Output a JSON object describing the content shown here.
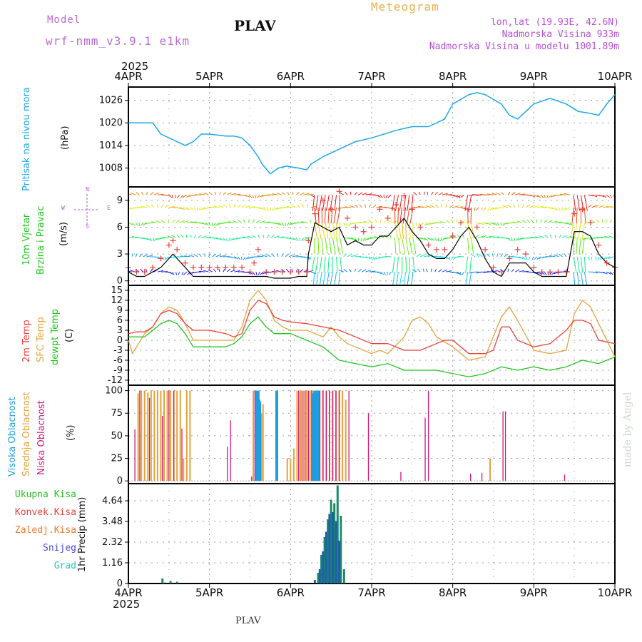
{
  "header": {
    "model_label": "Model",
    "model_name": "wrf-nmm_v3.9.1 e1km",
    "station": "PLAV",
    "title": "Meteogram",
    "lonlat": "lon,lat (19.93E, 42.6N)",
    "elevation": "Nadmorska Visina 933m",
    "model_elevation": "Nadmorska Visina u modelu 1001.89m",
    "year": "2025",
    "footer_station": "PLAV",
    "credit": "made by Angel"
  },
  "colors": {
    "pressure": "#1ea7e6",
    "t2m": "#e8413c",
    "sfc": "#e2a43a",
    "dew": "#21c41d",
    "wind_mean": "#000000",
    "gust": "#e8413c",
    "high_cloud": "#1e9ee0",
    "mid_cloud": "#e6a23a",
    "low_cloud": "#d1187f",
    "total_precip": "#21c41d",
    "conv_precip": "#e8413c",
    "frz_precip": "#f07a2c",
    "snow": "#4a4ad6",
    "hail": "#2cc7c0",
    "bar_dark": "#1f5fa8",
    "bar_green": "#1a8a6a"
  },
  "chart_data": [
    {
      "type": "line",
      "ylabel_main": "Pritisak na nivou mora",
      "ylabel_unit": "(hPa)",
      "ylim": [
        1003,
        1029.5
      ],
      "yticks": [
        "1008",
        "1014",
        "1020",
        "1026"
      ],
      "xlim_days": [
        4,
        10
      ],
      "xticks": [
        "4APR",
        "5APR",
        "6APR",
        "7APR",
        "8APR",
        "9APR",
        "10APR"
      ],
      "series": [
        {
          "x": [
            4.0,
            4.2,
            4.3,
            4.4,
            4.6,
            4.7,
            4.8,
            4.9,
            5.0,
            5.2,
            5.3,
            5.4,
            5.5,
            5.6,
            5.65,
            5.75,
            5.85,
            5.95,
            6.1,
            6.2,
            6.25,
            6.4,
            6.6,
            6.8,
            7.0,
            7.3,
            7.5,
            7.7,
            7.9,
            8.0,
            8.2,
            8.3,
            8.4,
            8.6,
            8.7,
            8.8,
            9.0,
            9.2,
            9.4,
            9.55,
            9.7,
            9.8,
            9.9,
            10.0
          ],
          "y": [
            1020,
            1020,
            1020,
            1017,
            1015,
            1014,
            1015,
            1017,
            1017,
            1016.5,
            1016.5,
            1016,
            1014,
            1011,
            1009,
            1006.5,
            1008,
            1008.5,
            1008,
            1007.5,
            1009,
            1011,
            1013,
            1015,
            1016,
            1018,
            1019,
            1019,
            1021,
            1025,
            1027.5,
            1028,
            1027.5,
            1025,
            1022,
            1021,
            1025,
            1026.5,
            1025,
            1023,
            1022.5,
            1022,
            1025,
            1027.5
          ]
        }
      ]
    },
    {
      "type": "line",
      "ylabel_main": "10m Vjetar",
      "ylabel_sub": "Brzina i Pravac",
      "ylabel_unit": "(m/s)",
      "compass": {
        "n": "N",
        "s": "S",
        "w": "W",
        "e": "E"
      },
      "ylim": [
        -0.5,
        10.5
      ],
      "yticks": [
        "0",
        "3",
        "6",
        "9"
      ],
      "series": [
        {
          "name": "mean wind",
          "x": [
            4.0,
            4.1,
            4.2,
            4.3,
            4.4,
            4.5,
            4.55,
            4.6,
            4.7,
            4.8,
            4.9,
            5.0,
            5.1,
            5.2,
            5.3,
            5.4,
            5.5,
            5.55,
            5.6,
            5.7,
            5.8,
            5.9,
            6.0,
            6.1,
            6.2,
            6.22,
            6.3,
            6.4,
            6.5,
            6.6,
            6.7,
            6.8,
            6.9,
            7.0,
            7.1,
            7.2,
            7.3,
            7.4,
            7.5,
            7.6,
            7.7,
            7.8,
            7.9,
            8.0,
            8.1,
            8.2,
            8.3,
            8.4,
            8.5,
            8.6,
            8.7,
            8.8,
            8.9,
            9.0,
            9.1,
            9.2,
            9.3,
            9.4,
            9.5,
            9.6,
            9.7,
            9.8,
            9.9,
            10.0
          ],
          "y": [
            1,
            0.5,
            0.5,
            1,
            1.5,
            2.5,
            3,
            2.5,
            1.5,
            0.5,
            0.5,
            0.5,
            0.5,
            0.5,
            0.5,
            0.5,
            0.5,
            0.5,
            0.5,
            0.5,
            0.3,
            0.3,
            0.3,
            0.5,
            0.5,
            3,
            6.5,
            6,
            5.5,
            6,
            4,
            4.5,
            4,
            4,
            5,
            5,
            6,
            7,
            5.5,
            4.5,
            3,
            2.5,
            2.5,
            3.5,
            5,
            6,
            4.5,
            2.5,
            1,
            0.5,
            2,
            2,
            2,
            1,
            0.5,
            0.5,
            0.5,
            0.5,
            5.5,
            5.5,
            5,
            3,
            2,
            1.5
          ]
        },
        {
          "name": "gust",
          "x": [
            4.0,
            4.1,
            4.2,
            4.3,
            4.4,
            4.5,
            4.55,
            4.6,
            4.7,
            4.8,
            4.9,
            5.0,
            5.1,
            5.2,
            5.3,
            5.4,
            5.5,
            5.55,
            5.6,
            5.7,
            5.8,
            5.9,
            6.0,
            6.1,
            6.2,
            6.22,
            6.3,
            6.4,
            6.5,
            6.6,
            6.7,
            6.8,
            6.9,
            7.0,
            7.1,
            7.2,
            7.3,
            7.4,
            7.5,
            7.6,
            7.7,
            7.8,
            7.9,
            8.0,
            8.1,
            8.2,
            8.3,
            8.4,
            8.5,
            8.6,
            8.7,
            8.8,
            8.9,
            9.0,
            9.1,
            9.2,
            9.3,
            9.4,
            9.5,
            9.6,
            9.7,
            9.8,
            9.9,
            10.0
          ],
          "y": [
            1.5,
            1,
            1,
            1.5,
            2.5,
            4,
            4.5,
            3.5,
            2,
            1.5,
            1.5,
            1.5,
            1.5,
            1.5,
            1.5,
            1.5,
            1,
            2,
            3.5,
            1,
            1,
            1,
            1,
            1,
            1,
            4.5,
            7.5,
            9,
            8,
            10,
            7,
            6,
            5.5,
            6,
            8,
            7,
            8.5,
            9.5,
            8,
            6,
            4,
            3.5,
            3.5,
            5,
            6.5,
            8,
            6,
            3.5,
            1.5,
            1,
            2.5,
            3.5,
            3,
            1.5,
            1,
            1,
            1,
            1,
            7.5,
            8,
            6.5,
            4,
            2,
            1.5
          ]
        }
      ]
    },
    {
      "type": "line",
      "ylabel_main": "2m Temp",
      "ylabel_sfc": "SFC Temp",
      "ylabel_dew": "dewpt Temp",
      "ylabel_unit": "(C)",
      "ylim": [
        -13.5,
        16.5
      ],
      "yticks": [
        "15",
        "12",
        "9",
        "6",
        "3",
        "0",
        "-3",
        "-6",
        "-9",
        "-12"
      ],
      "series": [
        {
          "name": "2m Temp",
          "x": [
            4.0,
            4.1,
            4.2,
            4.3,
            4.4,
            4.5,
            4.6,
            4.7,
            4.8,
            5.0,
            5.2,
            5.3,
            5.4,
            5.5,
            5.6,
            5.7,
            5.8,
            5.9,
            6.0,
            6.2,
            6.4,
            6.6,
            6.8,
            7.0,
            7.2,
            7.4,
            7.6,
            7.8,
            7.9,
            8.0,
            8.2,
            8.4,
            8.5,
            8.6,
            8.7,
            8.8,
            9.0,
            9.2,
            9.4,
            9.5,
            9.6,
            9.7,
            9.8,
            10.0
          ],
          "y": [
            2,
            2.5,
            2.5,
            4,
            8,
            9,
            8,
            5,
            3,
            3,
            2,
            1,
            2,
            9,
            12,
            11,
            7,
            6,
            5.5,
            5,
            4,
            3,
            1,
            -1,
            -1,
            -3,
            -3,
            -1,
            0,
            0,
            -4,
            -4,
            -3,
            4,
            4,
            0,
            -2,
            -1,
            3,
            6,
            6,
            5,
            0,
            -1
          ]
        },
        {
          "name": "SFC Temp",
          "x": [
            4.0,
            4.05,
            4.1,
            4.2,
            4.3,
            4.4,
            4.5,
            4.6,
            4.7,
            4.8,
            5.0,
            5.2,
            5.3,
            5.4,
            5.5,
            5.6,
            5.7,
            5.8,
            5.9,
            6.0,
            6.2,
            6.4,
            6.5,
            6.6,
            6.7,
            6.8,
            7.0,
            7.1,
            7.2,
            7.4,
            7.5,
            7.6,
            7.7,
            7.8,
            8.0,
            8.2,
            8.4,
            8.5,
            8.6,
            8.7,
            8.8,
            9.0,
            9.2,
            9.4,
            9.5,
            9.6,
            9.7,
            10.0
          ],
          "y": [
            0,
            -4,
            -2,
            2,
            4,
            8,
            10,
            9,
            5,
            0,
            0,
            0,
            0,
            4,
            12,
            15,
            12,
            6,
            4,
            3,
            3,
            1,
            4,
            1,
            -1,
            -2,
            -4,
            -3,
            -4,
            1,
            6,
            7,
            5,
            1,
            -2,
            -6,
            -5,
            1,
            7,
            10,
            6,
            -3,
            -4,
            -3,
            8,
            12,
            10,
            -5
          ]
        },
        {
          "name": "dewpt Temp",
          "x": [
            4.0,
            4.2,
            4.3,
            4.4,
            4.5,
            4.6,
            4.7,
            4.8,
            5.0,
            5.1,
            5.2,
            5.3,
            5.4,
            5.5,
            5.6,
            5.7,
            5.8,
            6.0,
            6.2,
            6.4,
            6.6,
            6.8,
            7.0,
            7.2,
            7.4,
            7.6,
            7.8,
            8.0,
            8.2,
            8.4,
            8.6,
            8.8,
            9.0,
            9.2,
            9.4,
            9.6,
            9.8,
            10.0
          ],
          "y": [
            1,
            1,
            3,
            5,
            6,
            5,
            2,
            -2,
            -2,
            -2,
            -2,
            -1,
            1,
            5,
            7,
            4,
            2,
            2,
            0,
            -2,
            -6,
            -7,
            -8,
            -7,
            -9,
            -9,
            -9,
            -10,
            -11,
            -10,
            -8,
            -9,
            -8,
            -9,
            -8,
            -6,
            -7,
            -5
          ]
        }
      ]
    },
    {
      "type": "bar",
      "ylabel_high": "Visoka Oblacnost",
      "ylabel_mid": "Srednja Oblacnost",
      "ylabel_low": "Niska Oblacnost",
      "ylabel_unit": "(%)",
      "ylim": [
        -3,
        106
      ],
      "yticks": [
        "100",
        "75",
        "50",
        "25",
        "0"
      ],
      "series": [
        {
          "name": "Visoka Oblacnost",
          "x": [
            5.58,
            5.6,
            5.62,
            5.83,
            6.28,
            6.3,
            6.32,
            6.34
          ],
          "values": [
            100,
            100,
            88,
            100,
            97,
            100,
            100,
            100
          ]
        },
        {
          "name": "Srednja Oblacnost",
          "x": [
            4.12,
            4.16,
            4.2,
            4.24,
            4.28,
            4.32,
            4.36,
            4.4,
            4.44,
            4.48,
            4.52,
            4.56,
            4.6,
            4.64,
            4.68,
            4.72,
            4.76,
            5.54,
            5.58,
            5.62,
            5.64,
            5.66,
            5.96,
            6.0,
            6.04,
            6.08,
            6.12,
            6.16,
            6.2,
            6.24,
            6.28,
            6.32,
            6.36,
            6.4,
            6.44,
            6.48,
            6.52,
            6.56,
            6.6,
            6.64,
            6.68,
            8.46
          ],
          "values": [
            97,
            100,
            100,
            98,
            100,
            100,
            100,
            100,
            100,
            100,
            100,
            100,
            100,
            100,
            25,
            100,
            100,
            100,
            86,
            78,
            75,
            85,
            25,
            25,
            36,
            100,
            100,
            100,
            100,
            100,
            100,
            100,
            100,
            100,
            100,
            100,
            100,
            100,
            100,
            100,
            90,
            25
          ]
        },
        {
          "name": "Niska Oblacnost",
          "x": [
            4.08,
            4.14,
            4.26,
            4.42,
            4.5,
            4.56,
            4.66,
            5.22,
            5.26,
            5.52,
            5.56,
            5.62,
            6.1,
            6.14,
            6.18,
            6.22,
            6.26,
            6.3,
            6.36,
            6.4,
            6.44,
            6.48,
            6.52,
            6.56,
            6.6,
            6.72,
            6.96,
            7.36,
            7.66,
            7.7,
            8.22,
            8.36,
            8.62,
            8.65,
            9.38
          ],
          "values": [
            57,
            100,
            92,
            72,
            100,
            100,
            58,
            38,
            67,
            5,
            100,
            90,
            100,
            100,
            100,
            100,
            100,
            100,
            100,
            100,
            100,
            100,
            100,
            100,
            100,
            100,
            75,
            10,
            70,
            100,
            8,
            9,
            77,
            77,
            7
          ]
        }
      ]
    },
    {
      "type": "bar",
      "ylabel_unit": "1hr Precip (mm)",
      "legend": [
        "Ukupna Kisa",
        "Konvek.Kisa",
        "Zaledj.Kisa",
        "Snijeg",
        "Grad"
      ],
      "ylim": [
        0,
        5.6
      ],
      "yticks": [
        "4.64",
        "3.48",
        "2.32",
        "1.16",
        "0"
      ],
      "series": [
        {
          "name": "Ukupna Kisa",
          "x": [
            4.42,
            4.52,
            4.6,
            6.34,
            6.38,
            6.42,
            6.46,
            6.5,
            6.54,
            6.58,
            6.62,
            6.66
          ],
          "values": [
            0.28,
            0.14,
            0.1,
            0.6,
            1.6,
            2.6,
            3.6,
            4.7,
            4.5,
            5.5,
            3.8,
            0.8
          ]
        },
        {
          "name": "Konvek.Kisa",
          "x": [
            4.42
          ],
          "values": [
            0.06
          ]
        },
        {
          "name": "Snijeg",
          "x": [
            6.3,
            6.36,
            6.4,
            6.44,
            6.48,
            6.52,
            6.56,
            6.6
          ],
          "values": [
            0.2,
            0.8,
            1.8,
            2.9,
            3.9,
            4.0,
            3.5,
            2.4
          ]
        }
      ]
    }
  ]
}
